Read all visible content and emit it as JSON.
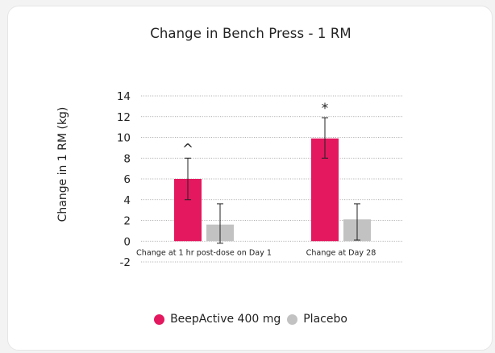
{
  "chart_data": {
    "type": "bar",
    "title": "Change in Bench Press - 1 RM",
    "xlabel": "",
    "ylabel": "Change in 1 RM (kg)",
    "ylim": [
      -2,
      14
    ],
    "yticks": [
      14,
      12,
      10,
      8,
      6,
      4,
      2,
      0,
      -2
    ],
    "grid": true,
    "legend_position": "bottom-center",
    "categories": [
      "Change at 1 hr post-dose on Day 1",
      "Change at Day 28"
    ],
    "series": [
      {
        "name": "BeepActive 400 mg",
        "color": "#e3185f",
        "values": [
          6.0,
          9.9
        ],
        "error": [
          [
            4.0,
            8.0
          ],
          [
            8.0,
            11.9
          ]
        ]
      },
      {
        "name": "Placebo",
        "color": "#c2c2c2",
        "values": [
          1.6,
          2.1
        ],
        "error": [
          [
            -0.2,
            3.6
          ],
          [
            0.1,
            3.6
          ]
        ]
      }
    ],
    "annotations": [
      {
        "category": 0,
        "series": 0,
        "text": "^"
      },
      {
        "category": 1,
        "series": 0,
        "text": "*"
      }
    ]
  }
}
